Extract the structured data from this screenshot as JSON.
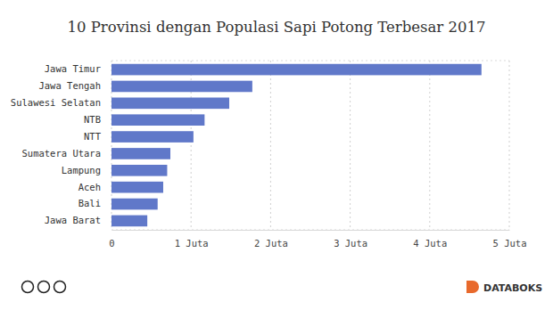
{
  "chart_data": {
    "type": "bar",
    "orientation": "horizontal",
    "title": "10 Provinsi dengan Populasi Sapi Potong Terbesar 2017",
    "categories": [
      "Jawa Timur",
      "Jawa Tengah",
      "Sulawesi Selatan",
      "NTB",
      "NTT",
      "Sumatera Utara",
      "Lampung",
      "Aceh",
      "Bali",
      "Jawa Barat"
    ],
    "values": [
      4.65,
      1.77,
      1.48,
      1.17,
      1.03,
      0.74,
      0.7,
      0.65,
      0.58,
      0.45
    ],
    "color": "#6078c9",
    "xlim": [
      0,
      5
    ],
    "xticks": [
      0,
      {
        "value": 1,
        "label": "1 Juta"
      },
      {
        "value": 2,
        "label": "2 Juta"
      },
      {
        "value": 3,
        "label": "3 Juta"
      },
      {
        "value": 4,
        "label": "4 Juta"
      },
      {
        "value": 5,
        "label": "5 Juta"
      }
    ],
    "grid": true,
    "annotations": [
      "DATABOKS"
    ]
  }
}
